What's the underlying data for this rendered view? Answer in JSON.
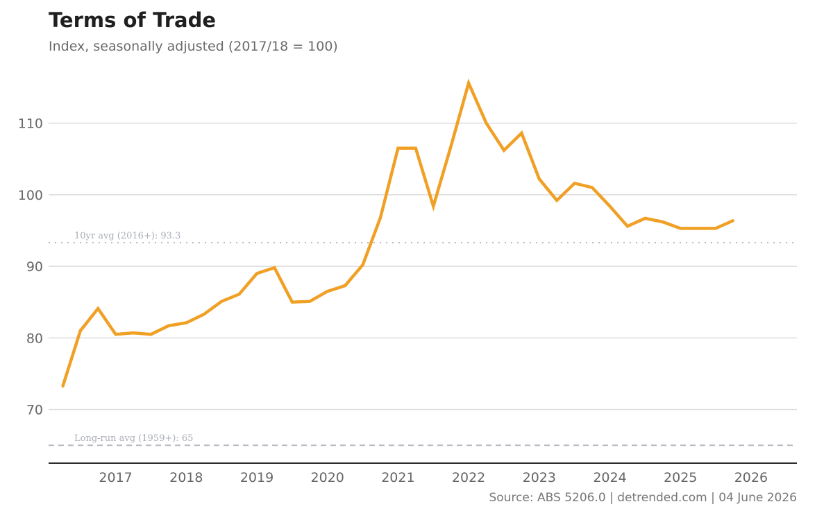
{
  "chart_data": {
    "type": "line",
    "title": "Terms of Trade",
    "subtitle": "Index, seasonally adjusted (2017/18 = 100)",
    "source": "Source: ABS 5206.0 | detrended.com | 04 June 2026",
    "ylim": [
      62.5,
      118
    ],
    "xlim": [
      2016.55,
      2027.15
    ],
    "yticks": [
      70,
      80,
      90,
      100,
      110
    ],
    "xticks": [
      2017,
      2018,
      2019,
      2020,
      2021,
      2022,
      2023,
      2024,
      2025,
      2026
    ],
    "grid": true,
    "color": "#f0a025",
    "series": [
      {
        "x": [
          2016.75,
          2017.0,
          2017.25,
          2017.5,
          2017.75,
          2018.0,
          2018.25,
          2018.5,
          2018.75,
          2019.0,
          2019.25,
          2019.5,
          2019.75,
          2020.0,
          2020.25,
          2020.5,
          2020.75,
          2021.0,
          2021.25,
          2021.5,
          2021.75,
          2022.0,
          2022.25,
          2022.5,
          2022.75,
          2023.0,
          2023.25,
          2023.5,
          2023.75,
          2024.0,
          2024.25,
          2024.5,
          2024.75,
          2025.0,
          2025.25,
          2025.5,
          2025.75,
          2026.0,
          2026.25
        ],
        "values": [
          73.2,
          81.0,
          84.1,
          80.5,
          80.7,
          80.5,
          81.7,
          82.1,
          83.3,
          85.1,
          86.1,
          89.0,
          89.8,
          85.0,
          85.1,
          86.5,
          87.3,
          90.2,
          96.8,
          106.5,
          106.5,
          98.4,
          106.8,
          115.6,
          110.0,
          106.2,
          108.6,
          102.2,
          99.2,
          101.6,
          101.0,
          98.4,
          95.6,
          96.7,
          96.2,
          95.3,
          95.3,
          95.3,
          96.4
        ]
      }
    ],
    "reference_lines": [
      {
        "label": "10yr avg (2016+): 93.3",
        "value": 93.3,
        "style": "dotted",
        "color": "#b7bac3"
      },
      {
        "label": "Long-run avg (1959+): 65",
        "value": 65,
        "style": "dashed",
        "color": "#b7bac3"
      }
    ]
  }
}
